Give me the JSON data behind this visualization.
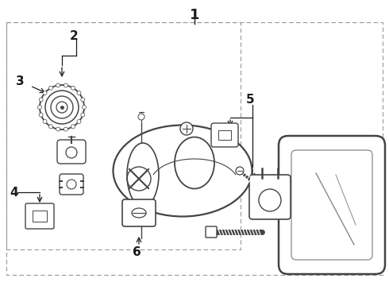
{
  "bg_color": "#ffffff",
  "line_color": "#1a1a1a",
  "gray": "#444444",
  "lgray": "#888888",
  "dash_color": "#999999",
  "title": "1",
  "fig_w": 4.9,
  "fig_h": 3.6,
  "dpi": 100
}
